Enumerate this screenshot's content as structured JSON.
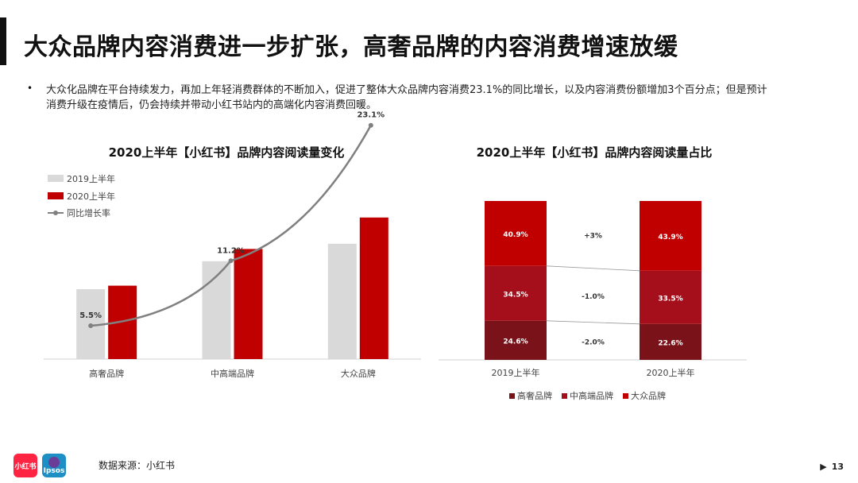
{
  "page": {
    "title": "大众品牌内容消费进一步扩张，高奢品牌的内容消费增速放缓",
    "bullet": "大众化品牌在平台持续发力，再加上年轻消费群体的不断加入，促进了整体大众品牌内容消费23.1%的同比增长，以及内容消费份额增加3个百分点；但是预计消费升级在疫情后，仍会持续并带动小红书站内的高端化内容消费回暖。",
    "source": "数据来源：小红书",
    "page_number": "13",
    "logo_red_text": "小红书",
    "logo_ipsos_text": "Ipsos"
  },
  "chart_data": [
    {
      "type": "bar",
      "title": "2020上半年【小红书】品牌内容阅读量变化",
      "categories": [
        "高奢品牌",
        "中高端品牌",
        "大众品牌"
      ],
      "series": [
        {
          "name": "2019上半年",
          "values": [
            40,
            56,
            66
          ],
          "color": "#d9d9d9"
        },
        {
          "name": "2020上半年",
          "values": [
            42,
            63,
            81
          ],
          "color": "#c00000"
        }
      ],
      "line": {
        "name": "同比增长率",
        "values": [
          5.5,
          11.2,
          23.1
        ],
        "labels": [
          "5.5%",
          "11.2%",
          "23.1%"
        ],
        "color": "#808080",
        "ylim": [
          0,
          30
        ]
      },
      "ylim": [
        0,
        100
      ],
      "legend_position": "top-left",
      "grid": false,
      "xlabel": "",
      "ylabel": ""
    },
    {
      "type": "bar",
      "stacked": true,
      "title": "2020上半年【小红书】品牌内容阅读量占比",
      "categories": [
        "2019上半年",
        "2020上半年"
      ],
      "series": [
        {
          "name": "高奢品牌",
          "values": [
            24.6,
            22.6
          ],
          "labels": [
            "24.6%",
            "22.6%"
          ],
          "color": "#7a1319"
        },
        {
          "name": "中高端品牌",
          "values": [
            34.5,
            33.5
          ],
          "labels": [
            "34.5%",
            "33.5%"
          ],
          "color": "#a50f1c"
        },
        {
          "name": "大众品牌",
          "values": [
            40.9,
            43.9
          ],
          "labels": [
            "40.9%",
            "43.9%"
          ],
          "color": "#c00000"
        }
      ],
      "changes": [
        "-2.0%",
        "-1.0%",
        "+3%"
      ],
      "ylim": [
        0,
        100
      ],
      "legend_position": "bottom",
      "grid": false,
      "xlabel": "",
      "ylabel": ""
    }
  ]
}
